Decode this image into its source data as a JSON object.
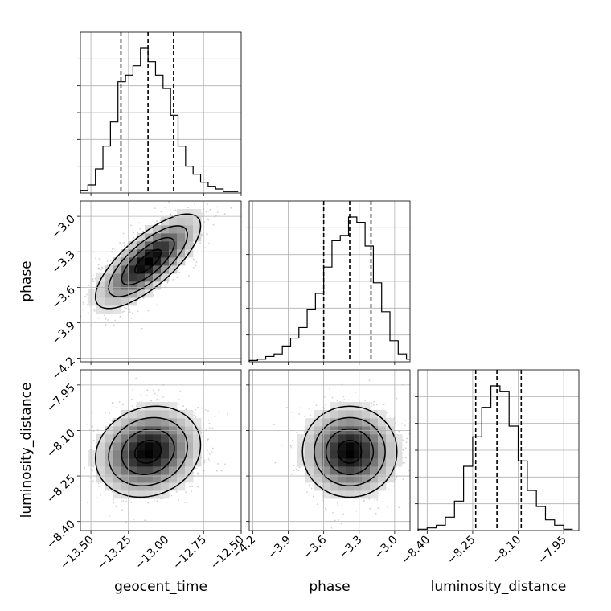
{
  "chart_data": {
    "type": "corner",
    "parameters": [
      "geocent_time",
      "phase",
      "luminosity_distance"
    ],
    "axis_labels": {
      "geocent_time": "geocent_time",
      "phase": "phase",
      "luminosity_distance": "luminosity_distance"
    },
    "ranges": {
      "geocent_time": [
        -13.57,
        -12.5
      ],
      "phase": [
        -4.23,
        -2.87
      ],
      "luminosity_distance": [
        -8.43,
        -7.9
      ]
    },
    "ticks": {
      "geocent_time": [
        "−13.50",
        "−13.25",
        "−13.00",
        "−12.75",
        "−12.50"
      ],
      "phase": [
        "−4.2",
        "−3.9",
        "−3.6",
        "−3.3",
        "−3.0"
      ],
      "luminosity_distance": [
        "−8.40",
        "−8.25",
        "−8.10",
        "−7.95"
      ]
    },
    "quantiles": {
      "geocent_time": [
        -13.3,
        -13.12,
        -12.95
      ],
      "phase": [
        -3.6,
        -3.38,
        -3.2
      ],
      "luminosity_distance": [
        -8.24,
        -8.17,
        -8.09
      ]
    },
    "histograms": {
      "geocent_time": {
        "bin_edges": [
          -13.57,
          -13.52,
          -13.47,
          -13.42,
          -13.37,
          -13.32,
          -13.27,
          -13.22,
          -13.17,
          -13.12,
          -13.07,
          -13.02,
          -12.97,
          -12.92,
          -12.87,
          -12.82,
          -12.77,
          -12.72,
          -12.67,
          -12.62,
          -12.57,
          -12.52
        ],
        "counts": [
          2,
          6,
          18,
          35,
          53,
          83,
          88,
          95,
          108,
          98,
          88,
          78,
          58,
          35,
          20,
          14,
          8,
          5,
          3,
          1,
          1
        ]
      },
      "phase": {
        "bin_edges": [
          -4.23,
          -4.16,
          -4.09,
          -4.02,
          -3.95,
          -3.88,
          -3.81,
          -3.74,
          -3.67,
          -3.6,
          -3.53,
          -3.46,
          -3.39,
          -3.32,
          -3.25,
          -3.18,
          -3.11,
          -3.04,
          -2.97,
          -2.9,
          -2.87
        ],
        "counts": [
          1,
          2,
          4,
          6,
          12,
          18,
          26,
          40,
          52,
          72,
          92,
          96,
          110,
          106,
          88,
          60,
          38,
          16,
          6,
          2
        ]
      },
      "luminosity_distance": {
        "bin_edges": [
          -8.43,
          -8.4,
          -8.37,
          -8.34,
          -8.31,
          -8.28,
          -8.25,
          -8.22,
          -8.19,
          -8.16,
          -8.13,
          -8.1,
          -8.07,
          -8.04,
          -8.01,
          -7.98,
          -7.95,
          -7.92
        ],
        "counts": [
          1,
          2,
          4,
          10,
          22,
          48,
          70,
          92,
          108,
          104,
          78,
          52,
          30,
          18,
          8,
          4,
          1
        ]
      }
    },
    "correlations": {
      "phase|geocent_time": 0.75,
      "luminosity_distance|geocent_time": 0.15,
      "luminosity_distance|phase": 0.0
    },
    "grid": true,
    "contour_levels": 3
  }
}
